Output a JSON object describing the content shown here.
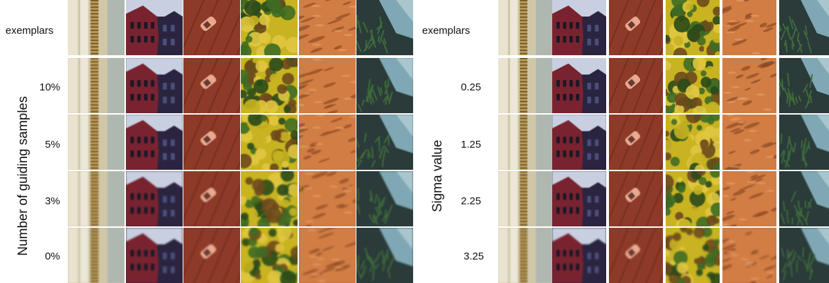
{
  "left_panel": {
    "axis_label": "Number of guiding samples",
    "row_labels": [
      "exemplars",
      "10%",
      "5%",
      "3%",
      "0%"
    ]
  },
  "right_panel": {
    "axis_label": "Sigma value",
    "row_labels": [
      "exemplars",
      "0.25",
      "1.25",
      "2.25",
      "3.25"
    ]
  },
  "textures": [
    {
      "name": "stairs-texture",
      "colors": [
        "#cfc7a8",
        "#e9e3cf",
        "#9fb0b3",
        "#b99a5a",
        "#f2efe3"
      ]
    },
    {
      "name": "building-texture",
      "colors": [
        "#2b2440",
        "#7a2330",
        "#4a4f7a",
        "#c7cfe0",
        "#1a1726"
      ]
    },
    {
      "name": "road-car-texture",
      "colors": [
        "#8e3a28",
        "#b5533a",
        "#5e2418",
        "#e8a98f",
        "#a84a30"
      ]
    },
    {
      "name": "foliage-texture",
      "colors": [
        "#c8b321",
        "#3f6b23",
        "#e0c640",
        "#6d4a1c",
        "#2a4a1a"
      ]
    },
    {
      "name": "sand-texture",
      "colors": [
        "#c8703b",
        "#d98a4e",
        "#8e4a24",
        "#e8a06a",
        "#b86232"
      ]
    },
    {
      "name": "water-plants-texture",
      "colors": [
        "#2a3b3a",
        "#7fa7b4",
        "#3f6b3a",
        "#1b2422",
        "#a9c6cf"
      ]
    }
  ]
}
